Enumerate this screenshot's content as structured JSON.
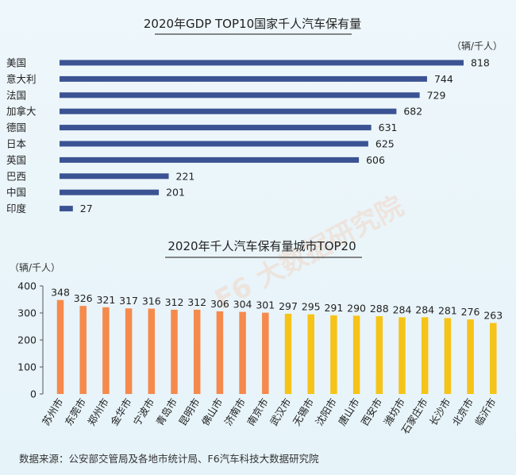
{
  "chart_data": [
    {
      "type": "bar",
      "orientation": "horizontal",
      "title": "2020年GDP TOP10国家千人汽车保有量",
      "unit": "（辆/千人）",
      "categories": [
        "美国",
        "意大利",
        "法国",
        "加拿大",
        "德国",
        "日本",
        "英国",
        "巴西",
        "中国",
        "印度"
      ],
      "values": [
        818,
        744,
        729,
        682,
        631,
        625,
        606,
        221,
        201,
        27
      ],
      "xlim": [
        0,
        818
      ],
      "color": "#3b5393",
      "grid": false,
      "legend": "none"
    },
    {
      "type": "bar",
      "orientation": "vertical",
      "title": "2020年千人汽车保有量城市TOP20",
      "unit": "（辆/千人）",
      "categories": [
        "苏州市",
        "东莞市",
        "郑州市",
        "金华市",
        "宁波市",
        "青岛市",
        "昆明市",
        "佛山市",
        "济南市",
        "南京市",
        "武汉市",
        "无锡市",
        "沈阳市",
        "唐山市",
        "西安市",
        "潍坊市",
        "石家庄市",
        "长沙市",
        "北京市",
        "临沂市"
      ],
      "values": [
        348,
        326,
        321,
        317,
        316,
        312,
        312,
        306,
        304,
        301,
        297,
        295,
        291,
        290,
        288,
        284,
        284,
        281,
        276,
        263
      ],
      "ylim": [
        0,
        400
      ],
      "yticks": [
        0,
        100,
        200,
        300,
        400
      ],
      "colors": {
        "first_ten": "#f58a4c",
        "last_ten": "#f6c318"
      },
      "grid": false,
      "legend": "none"
    }
  ],
  "watermark": "F6 大数据研究院",
  "source": "数据来源：公安部交管局及各地市统计局、F6汽车科技大数据研究院"
}
